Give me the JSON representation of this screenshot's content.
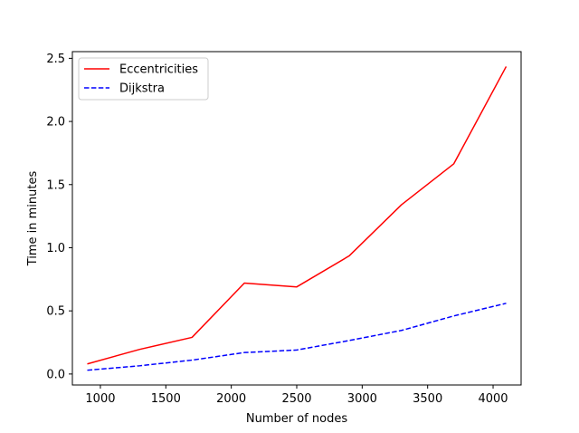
{
  "chart_data": {
    "type": "line",
    "xlabel": "Number of nodes",
    "ylabel": "Time in minutes",
    "xlim": [
      786,
      4214
    ],
    "ylim": [
      -0.087,
      2.553
    ],
    "xticks": [
      1000,
      1500,
      2000,
      2500,
      3000,
      3500,
      4000
    ],
    "xtick_labels": [
      "1000",
      "1500",
      "2000",
      "2500",
      "3000",
      "3500",
      "4000"
    ],
    "yticks": [
      0.0,
      0.5,
      1.0,
      1.5,
      2.0,
      2.5
    ],
    "ytick_labels": [
      "0.0",
      "0.5",
      "1.0",
      "1.5",
      "2.0",
      "2.5"
    ],
    "grid": false,
    "legend_position": "upper-left",
    "series": [
      {
        "name": "Eccentricities",
        "color": "#ff0000",
        "style": "solid",
        "x": [
          900,
          1300,
          1700,
          2100,
          2500,
          2900,
          3300,
          3700,
          4100
        ],
        "y": [
          0.08,
          0.195,
          0.29,
          0.72,
          0.69,
          0.935,
          1.34,
          1.665,
          2.435
        ]
      },
      {
        "name": "Dijkstra",
        "color": "#0000ff",
        "style": "dashed",
        "x": [
          900,
          1300,
          1700,
          2100,
          2500,
          2900,
          3300,
          3700,
          4100
        ],
        "y": [
          0.03,
          0.065,
          0.11,
          0.17,
          0.19,
          0.265,
          0.345,
          0.46,
          0.56
        ]
      }
    ]
  }
}
